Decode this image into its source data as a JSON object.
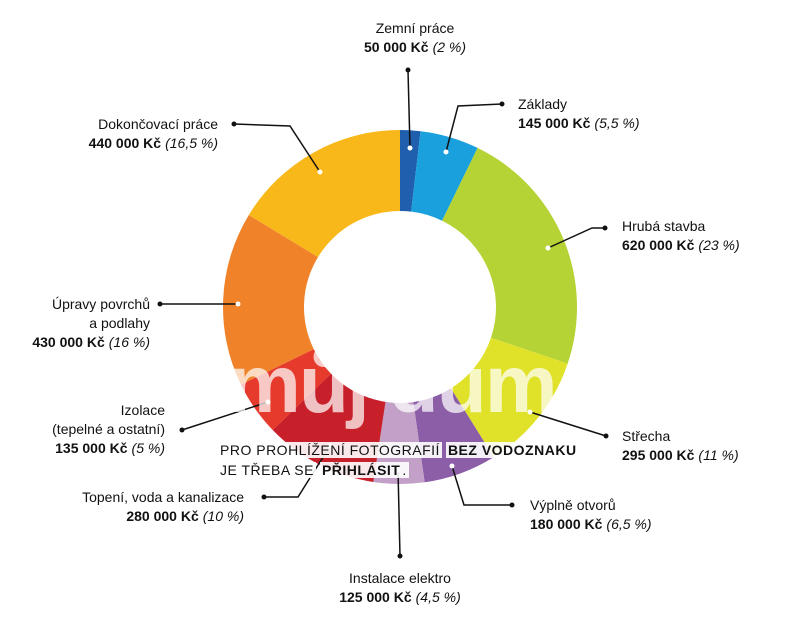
{
  "chart_data": {
    "type": "donut",
    "categories": [
      "Zemní práce",
      "Základy",
      "Hrubá stavba",
      "Střecha",
      "Výplně otvorů",
      "Instalace elektro",
      "Topení, voda a kanalizace",
      "Izolace\n(tepelné a ostatní)",
      "Úpravy povrchů\na podlahy",
      "Dokončovací práce"
    ],
    "values": [
      50000,
      145000,
      620000,
      295000,
      180000,
      125000,
      280000,
      135000,
      430000,
      440000
    ],
    "value_labels": [
      "50 000 Kč",
      "145 000 Kč",
      "620 000 Kč",
      "295 000 Kč",
      "180 000 Kč",
      "125 000 Kč",
      "280 000 Kč",
      "135 000 Kč",
      "430 000 Kč",
      "440 000 Kč"
    ],
    "percent_labels": [
      "(2 %)",
      "(5,5 %)",
      "(23 %)",
      "(11 %)",
      "(6,5 %)",
      "(4,5 %)",
      "(10 %)",
      "(5 %)",
      "(16 %)",
      "(16,5 %)"
    ],
    "colors": [
      "#1f5fad",
      "#1aa0dc",
      "#b5d334",
      "#e0e22a",
      "#8c5ea8",
      "#c2a0c8",
      "#c8202a",
      "#e63a2c",
      "#f0822a",
      "#f9b81a"
    ]
  },
  "watermark": {
    "logo": "můj dům",
    "line1": [
      "PRO PROHLÍŽENÍ FOTOGRAFIÍ",
      "BEZ VODOZNAKU"
    ],
    "line2": [
      "JE TŘEBA SE",
      "PŘIHLÁSIT",
      "."
    ]
  }
}
